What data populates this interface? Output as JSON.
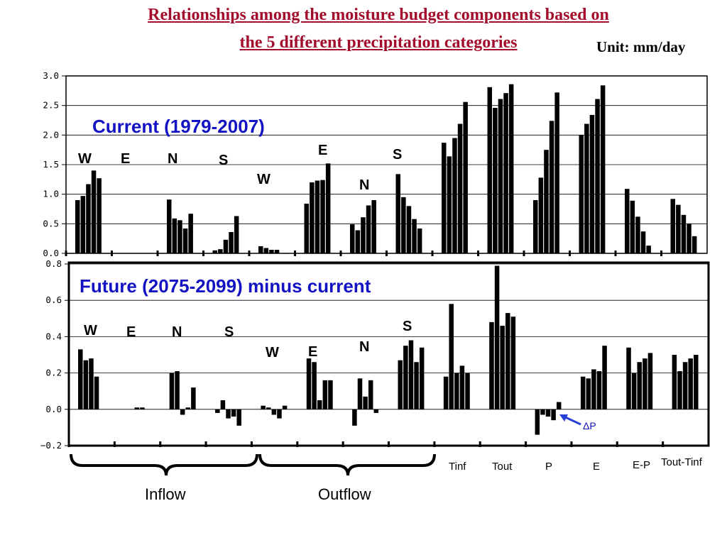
{
  "page": {
    "title_line1": "Relationships among the moisture budget components based on",
    "title_line2": "the 5 different precipitation categories",
    "unit": "Unit: mm/day"
  },
  "colors": {
    "title": "#a30d2b",
    "panel_title": "#1313c4",
    "bars": "#000000",
    "arrow": "#2a3fd6"
  },
  "chart_data": [
    {
      "type": "bar",
      "title": "Current (1979-2007)",
      "ylim": [
        0,
        3
      ],
      "yticks": [
        "0.0",
        "0.5",
        "1.0",
        "1.5",
        "2.0",
        "2.5",
        "3.0"
      ],
      "grid": true,
      "groups": [
        {
          "label": "W",
          "values": [
            0.9,
            0.97,
            1.17,
            1.4,
            1.27
          ]
        },
        {
          "label": "E",
          "values": [
            0,
            0,
            0,
            0,
            0
          ]
        },
        {
          "label": "N",
          "values": [
            0.91,
            0.59,
            0.56,
            0.42,
            0.67
          ]
        },
        {
          "label": "S",
          "values": [
            0.05,
            0.07,
            0.23,
            0.36,
            0.63
          ]
        },
        {
          "label": "W",
          "values": [
            0.12,
            0.09,
            0.06,
            0.06,
            0
          ]
        },
        {
          "label": "E",
          "values": [
            0.84,
            1.2,
            1.23,
            1.24,
            1.52
          ]
        },
        {
          "label": "N",
          "values": [
            0.49,
            0.39,
            0.61,
            0.81,
            0.9
          ]
        },
        {
          "label": "S",
          "values": [
            1.34,
            0.95,
            0.8,
            0.58,
            0.42
          ]
        },
        {
          "label": "",
          "values": [
            1.87,
            1.64,
            1.95,
            2.19,
            2.56
          ]
        },
        {
          "label": "",
          "values": [
            2.81,
            2.46,
            2.61,
            2.71,
            2.86
          ]
        },
        {
          "label": "",
          "values": [
            0.9,
            1.28,
            1.75,
            2.24,
            2.72
          ]
        },
        {
          "label": "",
          "values": [
            2.0,
            2.19,
            2.34,
            2.61,
            2.84
          ]
        },
        {
          "label": "",
          "values": [
            1.09,
            0.89,
            0.62,
            0.37,
            0.13
          ]
        },
        {
          "label": "",
          "values": [
            0.92,
            0.82,
            0.65,
            0.5,
            0.29
          ]
        }
      ]
    },
    {
      "type": "bar",
      "title": "Future (2075-2099) minus current",
      "ylim": [
        -0.2,
        0.8
      ],
      "yticks": [
        "−0.2",
        "0.0",
        "0.2",
        "0.4",
        "0.6",
        "0.8"
      ],
      "grid": true,
      "groups": [
        {
          "label": "W",
          "values": [
            0.33,
            0.27,
            0.28,
            0.18,
            0
          ]
        },
        {
          "label": "E",
          "values": [
            0,
            0,
            0.01,
            0.01,
            0
          ]
        },
        {
          "label": "N",
          "values": [
            0.2,
            0.21,
            -0.03,
            0.01,
            0.12
          ]
        },
        {
          "label": "S",
          "values": [
            -0.02,
            0.05,
            -0.05,
            -0.04,
            -0.09
          ]
        },
        {
          "label": "W",
          "values": [
            0.02,
            0.01,
            -0.03,
            -0.05,
            0.02
          ]
        },
        {
          "label": "E",
          "values": [
            0.28,
            0.26,
            0.05,
            0.16,
            0.16
          ]
        },
        {
          "label": "N",
          "values": [
            -0.09,
            0.17,
            0.07,
            0.16,
            -0.02
          ]
        },
        {
          "label": "S",
          "values": [
            0.27,
            0.35,
            0.38,
            0.26,
            0.34
          ]
        },
        {
          "label": "",
          "values": [
            0.18,
            0.58,
            0.2,
            0.24,
            0.2
          ]
        },
        {
          "label": "",
          "values": [
            0.48,
            0.79,
            0.46,
            0.53,
            0.51
          ]
        },
        {
          "label": "",
          "values": [
            -0.14,
            -0.03,
            -0.04,
            -0.06,
            0.04
          ]
        },
        {
          "label": "",
          "values": [
            0.18,
            0.17,
            0.22,
            0.21,
            0.35
          ]
        },
        {
          "label": "",
          "values": [
            0.34,
            0.2,
            0.26,
            0.28,
            0.31
          ]
        },
        {
          "label": "",
          "values": [
            0.3,
            0.21,
            0.26,
            0.28,
            0.3
          ]
        }
      ],
      "annotation": "ΔP"
    }
  ],
  "x_categories": {
    "inflow": "Inflow",
    "outflow": "Outflow",
    "tinf": "Tinf",
    "tout": "Tout",
    "p": "P",
    "e": "E",
    "ep": "E-P",
    "tout_tinf": "Tout-Tinf"
  }
}
